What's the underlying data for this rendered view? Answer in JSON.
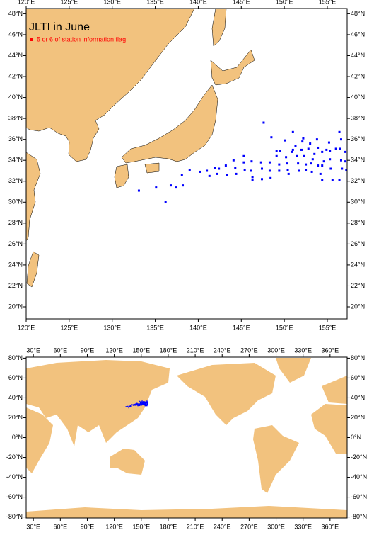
{
  "chart_data": [
    {
      "type": "map",
      "title": "JLTI in June",
      "xlim": [
        120,
        157.3
      ],
      "ylim": [
        18.85,
        48.5
      ],
      "xticks": [
        {
          "value": 120,
          "label": "120°E"
        },
        {
          "value": 125,
          "label": "125°E"
        },
        {
          "value": 130,
          "label": "130°E"
        },
        {
          "value": 135,
          "label": "135°E"
        },
        {
          "value": 140,
          "label": "140°E"
        },
        {
          "value": 145,
          "label": "145°E"
        },
        {
          "value": 150,
          "label": "150°E"
        },
        {
          "value": 155,
          "label": "155°E"
        }
      ],
      "yticks": [
        {
          "value": 20,
          "label": "20°N"
        },
        {
          "value": 22,
          "label": "22°N"
        },
        {
          "value": 24,
          "label": "24°N"
        },
        {
          "value": 26,
          "label": "26°N"
        },
        {
          "value": 28,
          "label": "28°N"
        },
        {
          "value": 30,
          "label": "30°N"
        },
        {
          "value": 32,
          "label": "32°N"
        },
        {
          "value": 34,
          "label": "34°N"
        },
        {
          "value": 36,
          "label": "36°N"
        },
        {
          "value": 38,
          "label": "38°N"
        },
        {
          "value": 40,
          "label": "40°N"
        },
        {
          "value": 42,
          "label": "42°N"
        },
        {
          "value": 44,
          "label": "44°N"
        },
        {
          "value": 46,
          "label": "46°N"
        },
        {
          "value": 48,
          "label": "48°N"
        }
      ],
      "legend_color": "#ff0000",
      "series": [
        {
          "name": "5 or 6 of station information flag",
          "color": "#0000ff",
          "x": [
            133.1,
            135.1,
            136.2,
            136.8,
            137.4,
            138.1,
            138.2,
            139.0,
            140.2,
            141.0,
            141.3,
            141.9,
            142.2,
            142.4,
            143.2,
            143.3,
            144.1,
            144.3,
            144.4,
            145.3,
            145.3,
            145.4,
            146.2,
            146.1,
            146.3,
            146.3,
            147.3,
            147.4,
            147.4,
            147.6,
            148.3,
            148.3,
            148.4,
            148.5,
            149.1,
            149.1,
            149.4,
            149.4,
            149.5,
            150.1,
            150.2,
            150.3,
            150.4,
            150.5,
            150.9,
            151.0,
            151.0,
            151.3,
            151.5,
            151.6,
            151.7,
            152.0,
            152.1,
            152.2,
            152.3,
            152.5,
            152.5,
            152.8,
            153.0,
            153.1,
            153.2,
            153.3,
            153.5,
            153.8,
            153.9,
            153.9,
            154.2,
            154.4,
            154.4,
            154.6,
            154.9,
            155.2,
            155.3,
            155.4,
            155.6,
            154.4,
            156.4,
            156.6,
            156.5,
            156.6,
            156.7,
            156.4,
            157.1,
            157.1,
            157.2,
            156.0,
            155.3
          ],
          "values": [
            31.1,
            31.4,
            30.0,
            31.6,
            31.4,
            32.6,
            31.6,
            33.1,
            32.9,
            33.0,
            32.5,
            33.3,
            32.7,
            33.2,
            33.5,
            32.6,
            34.0,
            33.3,
            32.7,
            34.4,
            33.8,
            33.1,
            33.9,
            33.0,
            32.4,
            32.1,
            33.8,
            33.2,
            32.2,
            37.6,
            33.0,
            33.8,
            32.3,
            36.2,
            34.9,
            34.4,
            33.6,
            33.0,
            34.9,
            35.9,
            34.3,
            33.7,
            33.1,
            32.7,
            34.8,
            35.0,
            36.7,
            35.4,
            34.4,
            33.7,
            33.0,
            35.0,
            35.8,
            36.1,
            34.4,
            33.6,
            33.1,
            35.1,
            35.6,
            33.7,
            32.9,
            34.1,
            34.6,
            36.0,
            33.5,
            35.2,
            32.7,
            33.5,
            34.8,
            33.9,
            35.0,
            35.7,
            34.1,
            33.2,
            32.1,
            32.1,
            36.7,
            36.0,
            35.1,
            34.0,
            33.2,
            32.1,
            34.8,
            33.9,
            33.1,
            35.1,
            34.9
          ]
        }
      ]
    },
    {
      "type": "map",
      "xlim": [
        22,
        379
      ],
      "ylim": [
        -81,
        81
      ],
      "xticks": [
        {
          "value": 30,
          "label": "30°E"
        },
        {
          "value": 60,
          "label": "60°E"
        },
        {
          "value": 90,
          "label": "90°E"
        },
        {
          "value": 120,
          "label": "120°E"
        },
        {
          "value": 150,
          "label": "150°E"
        },
        {
          "value": 180,
          "label": "180°E"
        },
        {
          "value": 210,
          "label": "210°E"
        },
        {
          "value": 240,
          "label": "240°E"
        },
        {
          "value": 270,
          "label": "270°E"
        },
        {
          "value": 300,
          "label": "300°E"
        },
        {
          "value": 330,
          "label": "330°E"
        },
        {
          "value": 360,
          "label": "360°E"
        }
      ],
      "yticks": [
        {
          "value": -80,
          "label": "-80°N"
        },
        {
          "value": -60,
          "label": "-60°N"
        },
        {
          "value": -40,
          "label": "-40°N"
        },
        {
          "value": -20,
          "label": "-20°N"
        },
        {
          "value": 0,
          "label": "0°N"
        },
        {
          "value": 20,
          "label": "20°N"
        },
        {
          "value": 40,
          "label": "40°N"
        },
        {
          "value": 60,
          "label": "60°N"
        },
        {
          "value": 80,
          "label": "80°N"
        }
      ]
    }
  ]
}
